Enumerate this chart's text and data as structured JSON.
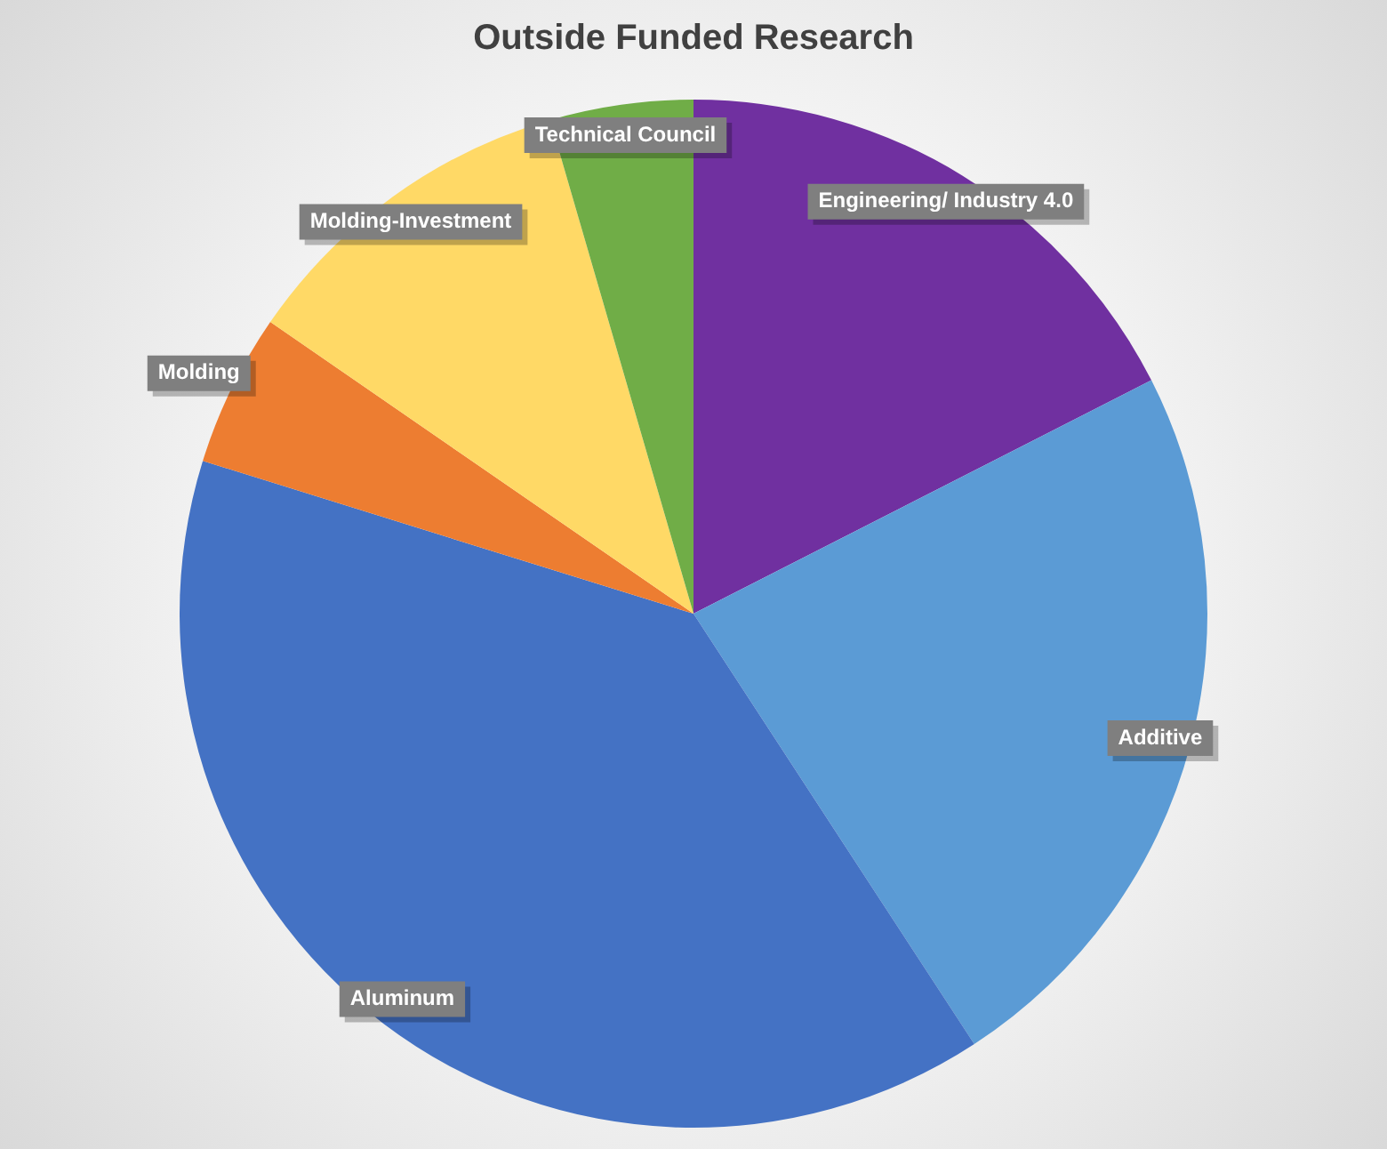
{
  "chart_data": {
    "type": "pie",
    "title": "Outside Funded Research",
    "categories": [
      "Engineering/ Industry 4.0",
      "Additive",
      "Aluminum",
      "Molding",
      "Molding-Investment",
      "Technical Council"
    ],
    "values": [
      17.5,
      23.3,
      39,
      4.8,
      10.9,
      4.5
    ],
    "colors": [
      "#7030a0",
      "#5b9bd5",
      "#4472c4",
      "#ed7d31",
      "#ffd966",
      "#70ad47"
    ],
    "legend": false
  }
}
